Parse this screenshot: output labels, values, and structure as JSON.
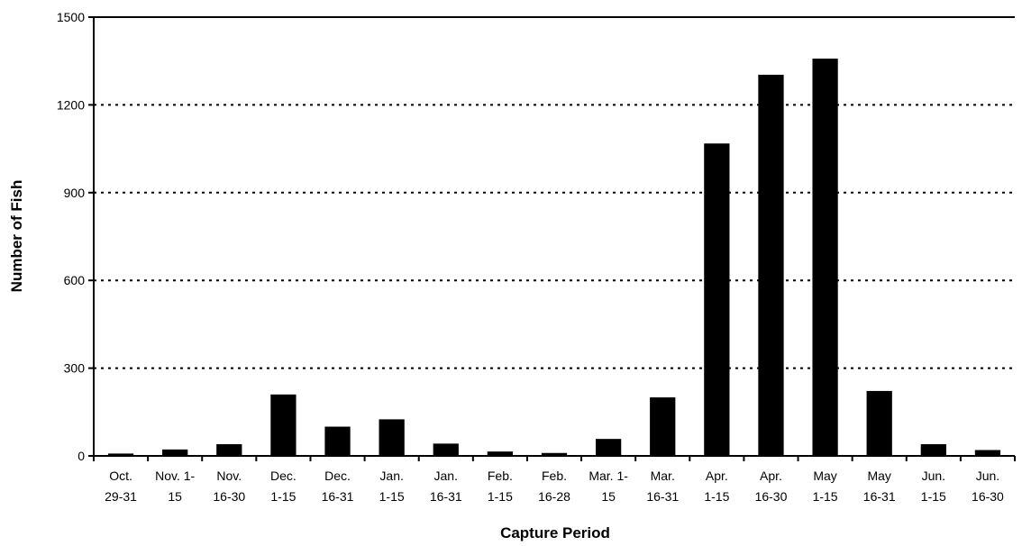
{
  "chart_data": {
    "type": "bar",
    "title": "",
    "xlabel": "Capture Period",
    "ylabel": "Number of Fish",
    "ylim": [
      0,
      1500
    ],
    "yticks": [
      "0",
      "300",
      "600",
      "900",
      "1200",
      "1500"
    ],
    "grid": "horizontal-dotted",
    "categories": [
      [
        "Oct.",
        "29-31"
      ],
      [
        "Nov. 1-",
        "15"
      ],
      [
        "Nov.",
        "16-30"
      ],
      [
        "Dec.",
        "1-15"
      ],
      [
        "Dec.",
        "16-31"
      ],
      [
        "Jan.",
        "1-15"
      ],
      [
        "Jan.",
        "16-31"
      ],
      [
        "Feb.",
        "1-15"
      ],
      [
        "Feb.",
        "16-28"
      ],
      [
        "Mar. 1-",
        "15"
      ],
      [
        "Mar.",
        "16-31"
      ],
      [
        "Apr.",
        "1-15"
      ],
      [
        "Apr.",
        "16-30"
      ],
      [
        "May",
        "1-15"
      ],
      [
        "May",
        "16-31"
      ],
      [
        "Jun.",
        "1-15"
      ],
      [
        "Jun.",
        "16-30"
      ]
    ],
    "values": [
      8,
      22,
      40,
      210,
      100,
      125,
      42,
      15,
      10,
      58,
      200,
      1068,
      1303,
      1358,
      222,
      40,
      20
    ],
    "bar_color": "#000000"
  }
}
